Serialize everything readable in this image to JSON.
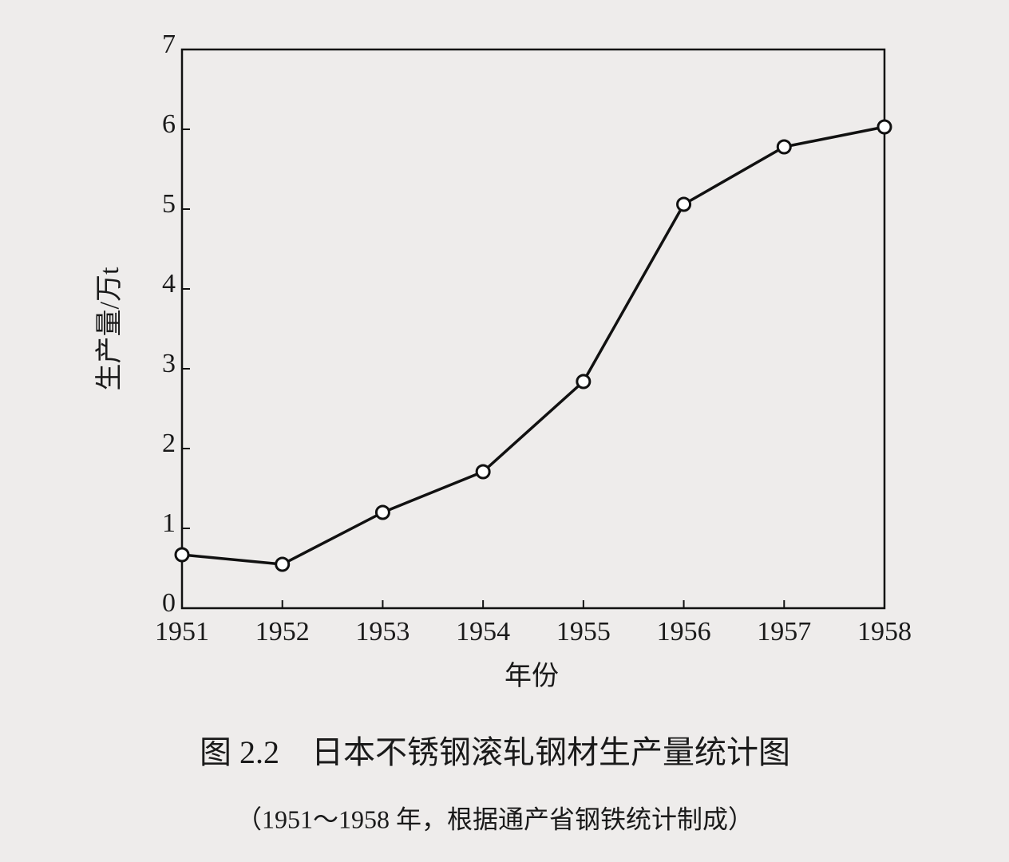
{
  "chart_data": {
    "type": "line",
    "title": "图 2.2　日本不锈钢滚轧钢材生产量统计图",
    "subtitle": "（1951～1958 年，根据通产省钢铁统计制成）",
    "x_label": "年份",
    "y_label": "生产量/万t",
    "x": [
      1951,
      1952,
      1953,
      1954,
      1955,
      1956,
      1957,
      1958
    ],
    "xlim": [
      1951,
      1958
    ],
    "xticks": [
      1951,
      1952,
      1953,
      1954,
      1955,
      1956,
      1957,
      1958
    ],
    "ylim": [
      0,
      7
    ],
    "yticks": [
      0,
      1,
      2,
      3,
      4,
      5,
      6,
      7
    ],
    "grid": false,
    "series": [
      {
        "color": "#111111",
        "values": [
          0.67,
          0.55,
          1.2,
          1.71,
          2.84,
          5.06,
          5.78,
          6.03
        ]
      }
    ]
  }
}
